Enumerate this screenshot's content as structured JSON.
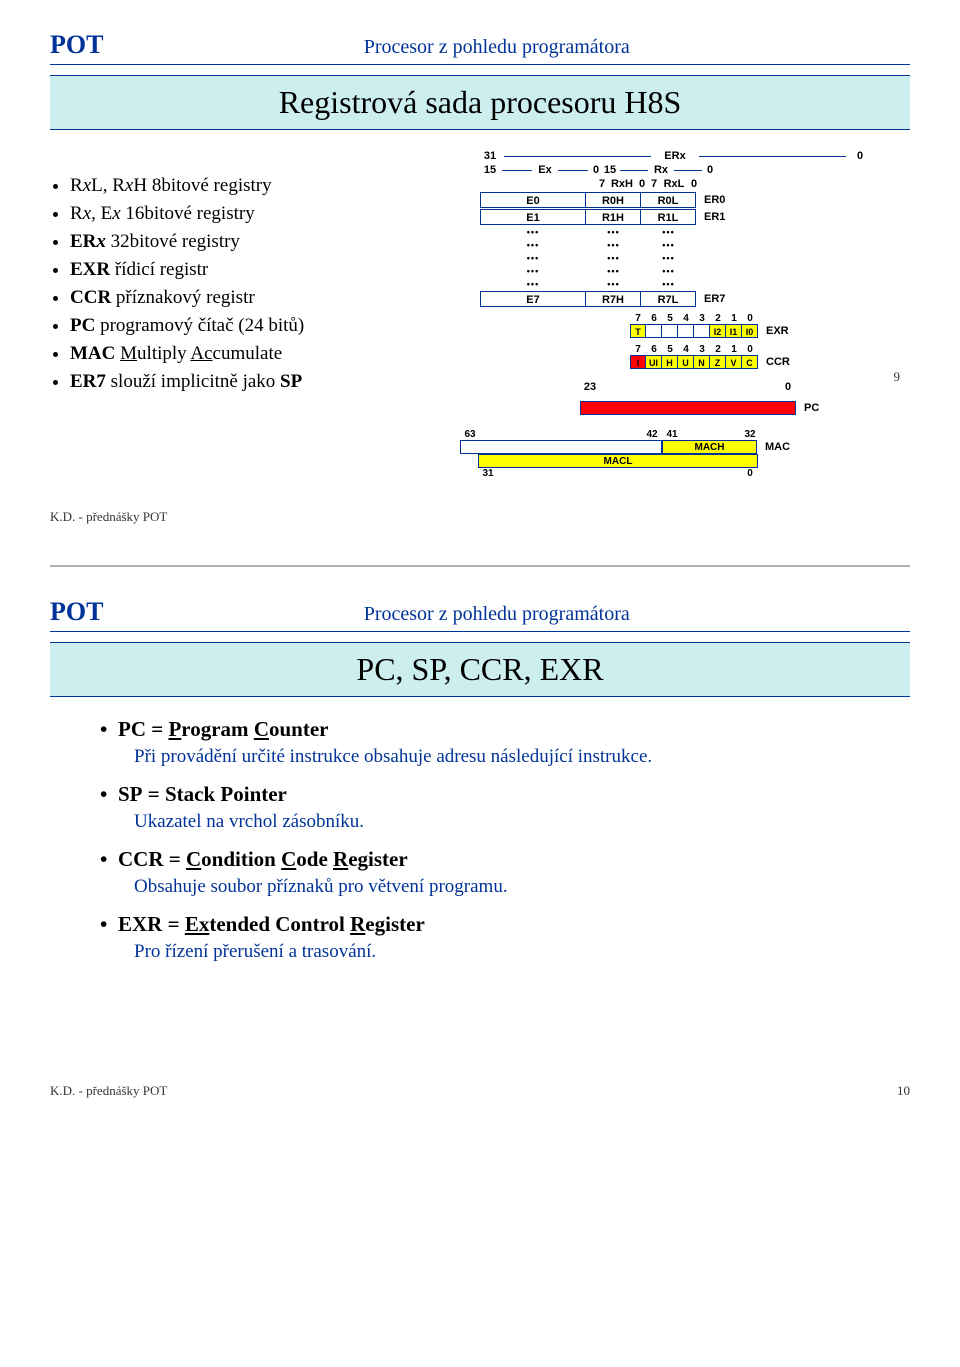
{
  "slide1": {
    "pot": "POT",
    "subtitle": "Procesor z pohledu programátora",
    "title": "Registrová sada procesoru H8S",
    "bullets": [
      {
        "html": "R<i>x</i>L, R<i>x</i>H 8bitové registry",
        "text": "RxL, RxH 8bitové registry"
      },
      {
        "html": "R<i>x</i>, E<i>x</i> 16bitové registry",
        "text": "Rx, Ex 16bitové registry"
      },
      {
        "html": "<b>ER<i>x</i></b> 32bitové registry",
        "text": "ERx 32bitové registry"
      },
      {
        "html": "<b>EXR</b> řídicí registr",
        "text": "EXR řídicí registr"
      },
      {
        "html": "<b>CCR</b> příznakový registr",
        "text": "CCR příznakový registr"
      },
      {
        "html": "<b>PC</b> programový čítač (24 bitů)",
        "text": "PC programový čítač (24 bitů)"
      },
      {
        "html": "<b>MAC</b> <u>M</u>ultiply <u>Ac</u>cumulate",
        "text": "MAC Multiply Accumulate"
      },
      {
        "html": "<b>ER7</b> slouží implicitně jako <b>SP</b>",
        "text": "ER7 slouží implicitně jako SP"
      }
    ],
    "diagram": {
      "erx_label": "ERx",
      "erx_left": "31",
      "erx_right": "0",
      "ex_label": "Ex",
      "ex_left": "15",
      "ex_mid": "0",
      "rx_label": "Rx",
      "rx_left": "15",
      "rx_right": "0",
      "rxh_label": "RxH",
      "rxh_l": "7",
      "rxh_r": "0",
      "rxl_label": "RxL",
      "rxl_l": "7",
      "rxl_r": "0",
      "rows": [
        {
          "e": "E0",
          "h": "R0H",
          "l": "R0L",
          "lbl": "ER0"
        },
        {
          "e": "E1",
          "h": "R1H",
          "l": "R1L",
          "lbl": "ER1"
        },
        {
          "e": "...",
          "h": "...",
          "l": "...",
          "lbl": ""
        },
        {
          "e": "...",
          "h": "...",
          "l": "...",
          "lbl": ""
        },
        {
          "e": "...",
          "h": "...",
          "l": "...",
          "lbl": ""
        },
        {
          "e": "...",
          "h": "...",
          "l": "...",
          "lbl": ""
        },
        {
          "e": "...",
          "h": "...",
          "l": "...",
          "lbl": ""
        },
        {
          "e": "E7",
          "h": "R7H",
          "l": "R7L",
          "lbl": "ER7"
        }
      ],
      "bit_nums": [
        "7",
        "6",
        "5",
        "4",
        "3",
        "2",
        "1",
        "0"
      ],
      "exr_bits": [
        "T",
        "",
        "",
        "",
        "",
        "I2",
        "I1",
        "I0"
      ],
      "exr_colors": [
        "yellow",
        "",
        "",
        "",
        "",
        "yellow",
        "yellow",
        "yellow"
      ],
      "exr_label": "EXR",
      "ccr_bits": [
        "I",
        "UI",
        "H",
        "U",
        "N",
        "Z",
        "V",
        "C"
      ],
      "ccr_colors": [
        "red",
        "yellow",
        "yellow",
        "yellow",
        "yellow",
        "yellow",
        "yellow",
        "yellow"
      ],
      "ccr_label": "CCR",
      "pc_left": "23",
      "pc_right": "0",
      "pc_label": "PC",
      "mac_left": "63",
      "mac_m1": "42",
      "mac_m2": "41",
      "mac_m3": "32",
      "mach": "MACH",
      "macl": "MACL",
      "mac_label": "MAC",
      "macl_left": "31",
      "macl_right": "0",
      "colors": {
        "border": "#003399",
        "yellow": "#ffff00",
        "red": "#ff0000",
        "title_bg": "#cceeee"
      }
    },
    "footer_left": "K.D. - přednášky POT",
    "page_num": "9"
  },
  "slide2": {
    "pot": "POT",
    "subtitle": "Procesor z pohledu programátora",
    "title": "PC, SP, CCR, EXR",
    "items": [
      {
        "term": "PC = Program Counter",
        "underline": "P,C",
        "desc": "Při provádění určité instrukce obsahuje adresu následující instrukce."
      },
      {
        "term": "SP = Stack Pointer",
        "underline": "",
        "desc": "Ukazatel na vrchol zásobníku."
      },
      {
        "term": "CCR = Condition Code Register",
        "underline": "C,C,R",
        "desc": "Obsahuje soubor příznaků pro větvení programu."
      },
      {
        "term": "EXR = Extended Control Register",
        "underline": "Ex,R",
        "desc": "Pro řízení přerušení a trasování."
      }
    ],
    "footer_left": "K.D. - přednášky POT",
    "page_num": "10"
  }
}
